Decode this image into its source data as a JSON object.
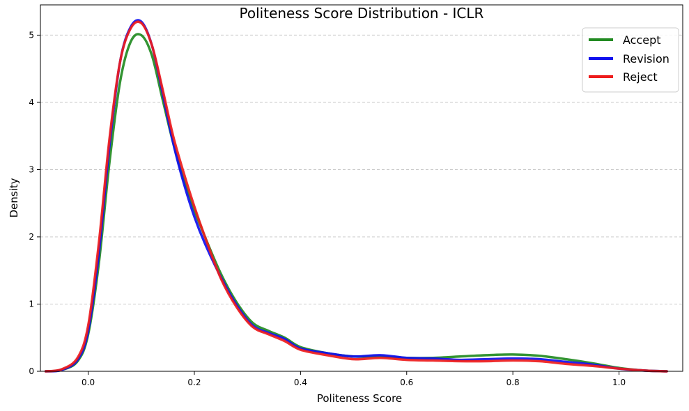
{
  "chart_data": {
    "type": "line",
    "title": "Politeness Score Distribution - ICLR",
    "xlabel": "Politeness Score",
    "ylabel": "Density",
    "xlim": [
      -0.09,
      1.12
    ],
    "ylim": [
      0,
      5.45
    ],
    "xticks": [
      0.0,
      0.2,
      0.4,
      0.6,
      0.8,
      1.0
    ],
    "xtick_labels": [
      "0.0",
      "0.2",
      "0.4",
      "0.6",
      "0.8",
      "1.0"
    ],
    "yticks": [
      0,
      1,
      2,
      3,
      4,
      5
    ],
    "ytick_labels": [
      "0",
      "1",
      "2",
      "3",
      "4",
      "5"
    ],
    "grid": "y-dashed",
    "legend_position": "top-right",
    "series": [
      {
        "name": "Accept",
        "color": "#228b22",
        "x": [
          -0.08,
          -0.05,
          -0.02,
          0.0,
          0.02,
          0.04,
          0.06,
          0.08,
          0.1,
          0.12,
          0.14,
          0.16,
          0.18,
          0.2,
          0.22,
          0.25,
          0.28,
          0.31,
          0.34,
          0.37,
          0.4,
          0.45,
          0.5,
          0.55,
          0.6,
          0.65,
          0.7,
          0.75,
          0.8,
          0.85,
          0.9,
          0.95,
          1.0,
          1.05,
          1.09
        ],
        "y": [
          0.0,
          0.02,
          0.15,
          0.55,
          1.6,
          3.1,
          4.3,
          4.9,
          5.0,
          4.7,
          4.05,
          3.4,
          2.85,
          2.4,
          2.0,
          1.45,
          1.02,
          0.72,
          0.6,
          0.5,
          0.36,
          0.27,
          0.22,
          0.22,
          0.2,
          0.2,
          0.22,
          0.24,
          0.25,
          0.23,
          0.18,
          0.12,
          0.05,
          0.01,
          0.0
        ]
      },
      {
        "name": "Revision",
        "color": "#1010ee",
        "x": [
          -0.08,
          -0.05,
          -0.02,
          0.0,
          0.02,
          0.04,
          0.06,
          0.08,
          0.1,
          0.12,
          0.14,
          0.16,
          0.18,
          0.2,
          0.22,
          0.25,
          0.28,
          0.31,
          0.34,
          0.37,
          0.4,
          0.45,
          0.5,
          0.55,
          0.6,
          0.65,
          0.7,
          0.75,
          0.8,
          0.85,
          0.9,
          0.95,
          1.0,
          1.05,
          1.09
        ],
        "y": [
          0.0,
          0.02,
          0.17,
          0.6,
          1.75,
          3.35,
          4.6,
          5.12,
          5.2,
          4.85,
          4.15,
          3.4,
          2.8,
          2.3,
          1.9,
          1.4,
          0.98,
          0.68,
          0.57,
          0.48,
          0.34,
          0.27,
          0.22,
          0.24,
          0.2,
          0.19,
          0.17,
          0.18,
          0.19,
          0.18,
          0.14,
          0.1,
          0.04,
          0.01,
          0.0
        ]
      },
      {
        "name": "Reject",
        "color": "#ee1c1c",
        "x": [
          -0.08,
          -0.05,
          -0.02,
          0.0,
          0.02,
          0.04,
          0.06,
          0.08,
          0.1,
          0.12,
          0.14,
          0.16,
          0.18,
          0.2,
          0.22,
          0.25,
          0.28,
          0.31,
          0.34,
          0.37,
          0.4,
          0.45,
          0.5,
          0.55,
          0.6,
          0.65,
          0.7,
          0.75,
          0.8,
          0.85,
          0.9,
          0.95,
          1.0,
          1.05,
          1.09
        ],
        "y": [
          0.0,
          0.03,
          0.2,
          0.68,
          1.9,
          3.45,
          4.6,
          5.1,
          5.18,
          4.85,
          4.2,
          3.5,
          2.95,
          2.45,
          2.0,
          1.38,
          0.95,
          0.66,
          0.55,
          0.45,
          0.32,
          0.24,
          0.18,
          0.2,
          0.17,
          0.16,
          0.15,
          0.15,
          0.16,
          0.15,
          0.11,
          0.08,
          0.04,
          0.01,
          0.0
        ]
      }
    ]
  }
}
